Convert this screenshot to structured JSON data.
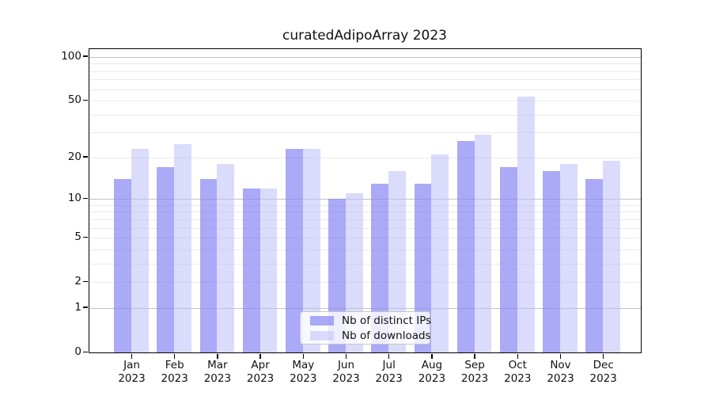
{
  "chart_data": {
    "type": "bar",
    "title": "curatedAdipoArray 2023",
    "categories": [
      "Jan",
      "Feb",
      "Mar",
      "Apr",
      "May",
      "Jun",
      "Jul",
      "Aug",
      "Sep",
      "Oct",
      "Nov",
      "Dec"
    ],
    "x_tick_second_line": "2023",
    "series": [
      {
        "name": "Nb of distinct IPs",
        "color": "rgba(134,134,244,0.70)",
        "values": [
          14,
          17,
          14,
          12,
          23,
          10,
          13,
          13,
          26,
          17,
          16,
          14
        ]
      },
      {
        "name": "Nb of downloads",
        "color": "rgba(190,190,250,0.55)",
        "values": [
          23,
          25,
          18,
          12,
          23,
          11,
          16,
          21,
          29,
          53,
          18,
          19
        ]
      }
    ],
    "y_scale": "log10(value+1)",
    "y_top_value": 113,
    "y_tick_values": [
      0,
      1,
      2,
      5,
      10,
      20,
      50,
      100
    ],
    "y_tick_labels": [
      "0",
      "1",
      "2",
      "5",
      "10",
      "20",
      "50",
      "100"
    ],
    "gridlines_major": [
      1,
      10,
      100
    ],
    "gridlines_minor": [
      2,
      3,
      4,
      5,
      6,
      7,
      8,
      9,
      20,
      30,
      40,
      50,
      60,
      70,
      80,
      90
    ],
    "grid": "on",
    "xlabel": "",
    "ylabel": "",
    "legend_position": "bottom-center",
    "background_color": "#ffffff",
    "axis_color": "#000000"
  }
}
